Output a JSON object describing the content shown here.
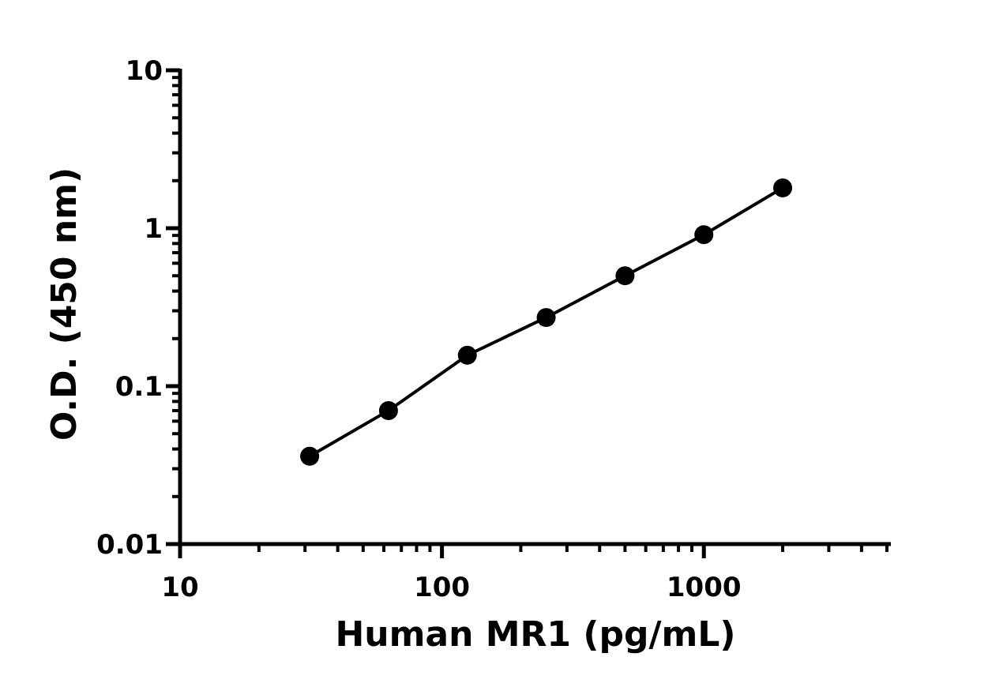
{
  "chart_data": {
    "type": "line",
    "x_label": "Human MR1 (pg/mL)",
    "y_label": "O.D. (450 nm)",
    "x": [
      31.25,
      62.5,
      125,
      250,
      500,
      1000,
      2000
    ],
    "series": [
      {
        "color": "#000000",
        "values": [
          0.036,
          0.07,
          0.157,
          0.272,
          0.5,
          0.91,
          1.8
        ]
      }
    ],
    "xlim": [
      10,
      5000
    ],
    "ylim": [
      0.01,
      10
    ],
    "xticks": [
      10,
      100,
      1000
    ],
    "yticks": [
      0.01,
      0.1,
      1,
      10
    ],
    "xscale": "log",
    "yscale": "log",
    "markers": true
  }
}
